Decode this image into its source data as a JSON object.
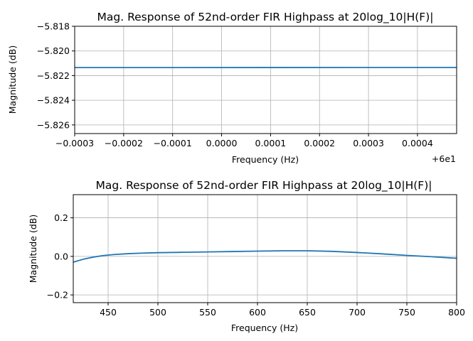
{
  "chart_data": [
    {
      "type": "line",
      "title": "Mag. Response of 52nd-order FIR Highpass at 20log_10|H(F)|",
      "xlabel": "Frequency (Hz)",
      "ylabel": "Magnitude (dB)",
      "x_offset_label": "+6e1",
      "xlim": [
        -0.0003,
        0.00048
      ],
      "ylim": [
        -5.8267,
        -5.818
      ],
      "xticks": [
        -0.0003,
        -0.0002,
        -0.0001,
        0.0,
        0.0001,
        0.0002,
        0.0003,
        0.0004
      ],
      "xtick_labels": [
        "−0.0003",
        "−0.0002",
        "−0.0001",
        "0.0000",
        "0.0001",
        "0.0002",
        "0.0003",
        "0.0004"
      ],
      "yticks": [
        -5.818,
        -5.82,
        -5.822,
        -5.824,
        -5.826
      ],
      "ytick_labels": [
        "−5.818",
        "−5.820",
        "−5.822",
        "−5.824",
        "−5.826"
      ],
      "grid": true,
      "line_color": "#1f77b4",
      "series": [
        {
          "x": [
            -0.0003,
            0.00048
          ],
          "y": [
            -5.82135,
            -5.82134
          ]
        }
      ]
    },
    {
      "type": "line",
      "title": "Mag. Response of 52nd-order FIR Highpass at 20log_10|H(F)|",
      "xlabel": "Frequency (Hz)",
      "ylabel": "Magnitude (dB)",
      "xlim": [
        415,
        800
      ],
      "ylim": [
        -0.24,
        0.32
      ],
      "xticks": [
        450,
        500,
        550,
        600,
        650,
        700,
        750,
        800
      ],
      "xtick_labels": [
        "450",
        "500",
        "550",
        "600",
        "650",
        "700",
        "750",
        "800"
      ],
      "yticks": [
        0.2,
        0.0,
        -0.2
      ],
      "ytick_labels": [
        "0.2",
        "0.0",
        "−0.2"
      ],
      "grid": true,
      "line_color": "#1f77b4",
      "series": [
        {
          "x": [
            415,
            425,
            435,
            445,
            455,
            470,
            485,
            500,
            525,
            550,
            575,
            600,
            625,
            650,
            675,
            700,
            725,
            750,
            775,
            800
          ],
          "y": [
            -0.03,
            -0.015,
            -0.004,
            0.004,
            0.009,
            0.014,
            0.017,
            0.019,
            0.021,
            0.023,
            0.025,
            0.027,
            0.029,
            0.029,
            0.026,
            0.02,
            0.013,
            0.005,
            -0.002,
            -0.01
          ]
        }
      ]
    }
  ]
}
